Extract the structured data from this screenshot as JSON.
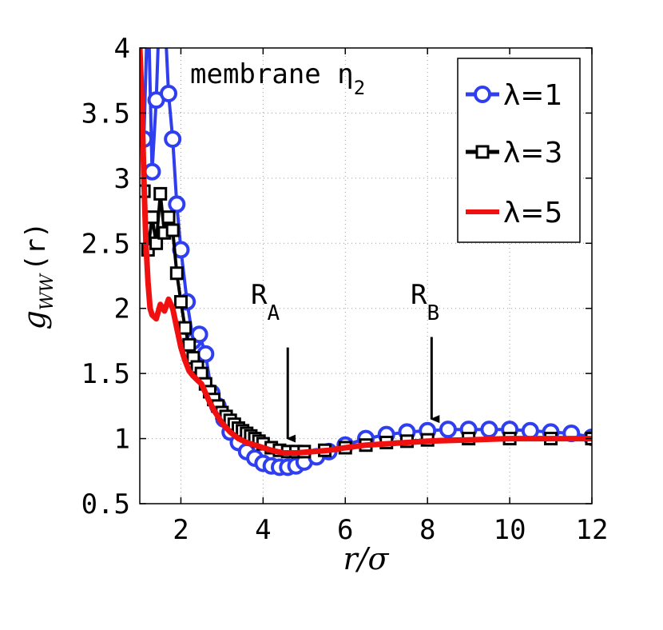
{
  "chart_data": {
    "type": "line",
    "title": "",
    "xlabel": "r/σ",
    "ylabel": "g_WW(r)",
    "ylabel_main": "g",
    "ylabel_sub": "WW",
    "ylabel_arg": "(r)",
    "xlim": [
      1.0,
      12.0
    ],
    "ylim": [
      0.5,
      4.0
    ],
    "x_ticks": [
      2,
      4,
      6,
      8,
      10,
      12
    ],
    "x_tick_labels": [
      "2",
      "4",
      "6",
      "8",
      "10",
      "12"
    ],
    "y_ticks": [
      0.5,
      1,
      1.5,
      2,
      2.5,
      3,
      3.5,
      4
    ],
    "y_tick_labels": [
      "0.5",
      "1",
      "1.5",
      "2",
      "2.5",
      "3",
      "3.5",
      "4"
    ],
    "grid": true,
    "legend_position": "top-right",
    "annotations": {
      "membrane": {
        "main": "membrane η",
        "sub": "2"
      },
      "RA": {
        "main": "R",
        "sub": "A",
        "x": 4.6,
        "arrow_from_y": 1.7,
        "arrow_to_y": 1.0
      },
      "RB": {
        "main": "R",
        "sub": "B",
        "x": 8.1,
        "arrow_from_y": 1.78,
        "arrow_to_y": 1.15
      }
    },
    "series": [
      {
        "name": "λ=1",
        "color": "#2f3ff0",
        "marker": "circle",
        "x": [
          1.1,
          1.2,
          1.3,
          1.4,
          1.5,
          1.6,
          1.7,
          1.8,
          1.9,
          2.0,
          2.15,
          2.3,
          2.45,
          2.6,
          2.75,
          2.9,
          3.05,
          3.2,
          3.4,
          3.6,
          3.8,
          4.0,
          4.2,
          4.4,
          4.6,
          4.8,
          5.0,
          5.3,
          5.6,
          6.0,
          6.5,
          7.0,
          7.5,
          8.0,
          8.5,
          9.0,
          9.5,
          10.0,
          10.5,
          11.0,
          11.5,
          12.0
        ],
        "y": [
          3.3,
          4.4,
          3.05,
          3.6,
          4.5,
          4.3,
          3.65,
          3.3,
          2.8,
          2.45,
          2.05,
          1.75,
          1.8,
          1.65,
          1.35,
          1.25,
          1.15,
          1.05,
          0.97,
          0.9,
          0.85,
          0.81,
          0.79,
          0.78,
          0.78,
          0.79,
          0.82,
          0.86,
          0.9,
          0.95,
          1.0,
          1.03,
          1.05,
          1.06,
          1.07,
          1.07,
          1.07,
          1.07,
          1.06,
          1.05,
          1.04,
          1.01
        ]
      },
      {
        "name": "λ=3",
        "color": "#000000",
        "marker": "square",
        "x": [
          1.1,
          1.2,
          1.3,
          1.4,
          1.5,
          1.6,
          1.7,
          1.8,
          1.9,
          2.0,
          2.1,
          2.2,
          2.3,
          2.4,
          2.5,
          2.6,
          2.7,
          2.8,
          2.9,
          3.0,
          3.1,
          3.2,
          3.3,
          3.4,
          3.5,
          3.6,
          3.7,
          3.8,
          3.9,
          4.0,
          4.2,
          4.4,
          4.6,
          4.8,
          5.0,
          5.5,
          6.0,
          6.5,
          7.0,
          7.5,
          8.0,
          9.0,
          10.0,
          11.0,
          12.0
        ],
        "y": [
          2.9,
          2.45,
          2.7,
          2.5,
          2.88,
          2.58,
          2.7,
          2.6,
          2.27,
          2.05,
          1.85,
          1.72,
          1.62,
          1.55,
          1.5,
          1.42,
          1.36,
          1.3,
          1.25,
          1.2,
          1.17,
          1.14,
          1.11,
          1.08,
          1.06,
          1.04,
          1.02,
          1.0,
          0.98,
          0.96,
          0.93,
          0.91,
          0.9,
          0.9,
          0.9,
          0.91,
          0.93,
          0.95,
          0.97,
          0.98,
          0.99,
          1.0,
          1.0,
          1.0,
          1.0
        ]
      },
      {
        "name": "λ=5",
        "color": "#f01010",
        "marker": "none",
        "x": [
          1.0,
          1.05,
          1.1,
          1.15,
          1.2,
          1.25,
          1.3,
          1.4,
          1.5,
          1.6,
          1.7,
          1.8,
          1.9,
          2.0,
          2.1,
          2.2,
          2.3,
          2.4,
          2.5,
          2.6,
          2.7,
          2.8,
          3.0,
          3.2,
          3.4,
          3.6,
          3.8,
          4.0,
          4.2,
          4.5,
          4.8,
          5.2,
          5.6,
          6.0,
          6.5,
          7.0,
          7.5,
          8.0,
          9.0,
          10.0,
          11.0,
          12.0
        ],
        "y": [
          4.0,
          3.6,
          3.0,
          2.5,
          2.2,
          2.0,
          1.95,
          1.92,
          2.03,
          1.98,
          2.07,
          2.0,
          1.85,
          1.7,
          1.6,
          1.52,
          1.48,
          1.45,
          1.42,
          1.35,
          1.28,
          1.22,
          1.12,
          1.05,
          1.0,
          0.97,
          0.95,
          0.93,
          0.91,
          0.89,
          0.89,
          0.9,
          0.91,
          0.93,
          0.95,
          0.96,
          0.97,
          0.98,
          0.99,
          1.0,
          1.0,
          1.0
        ]
      }
    ]
  }
}
